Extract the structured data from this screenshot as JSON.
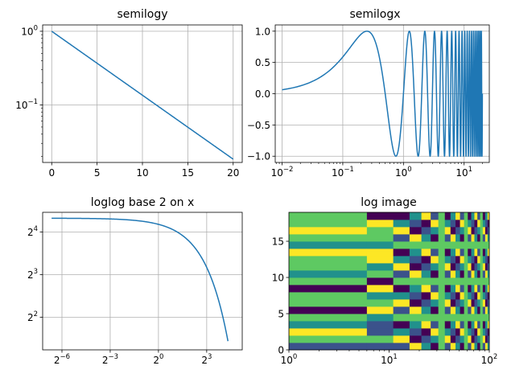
{
  "chart_data": [
    {
      "type": "line",
      "title": "semilogy",
      "xlabel": "",
      "ylabel": "",
      "yscale": "log",
      "xlim": [
        -1,
        21
      ],
      "ylim": [
        0.0165,
        1.22
      ],
      "grid": true,
      "x_ticks": [
        0,
        5,
        10,
        15,
        20
      ],
      "x_tick_labels": [
        "0",
        "5",
        "10",
        "15",
        "20"
      ],
      "y_ticks": [
        0.1,
        1
      ],
      "y_tick_labels": [
        {
          "base": "10",
          "exp": "−1"
        },
        {
          "base": "10",
          "exp": "0"
        }
      ],
      "series": [
        {
          "x": [
            0,
            20
          ],
          "y": [
            1.0,
            0.0183
          ],
          "color": "#1f77b4"
        }
      ]
    },
    {
      "type": "line",
      "title": "semilogx",
      "xlabel": "",
      "ylabel": "",
      "xscale": "log",
      "xlim": [
        0.0077,
        26
      ],
      "ylim": [
        -1.1,
        1.1
      ],
      "grid": true,
      "x_ticks": [
        0.01,
        0.1,
        1,
        10
      ],
      "x_tick_labels": [
        {
          "base": "10",
          "exp": "−2"
        },
        {
          "base": "10",
          "exp": "−1"
        },
        {
          "base": "10",
          "exp": "0"
        },
        {
          "base": "10",
          "exp": "1"
        }
      ],
      "y_ticks": [
        -1.0,
        -0.5,
        0.0,
        0.5,
        1.0
      ],
      "y_tick_labels": [
        "−1.0",
        "−0.5",
        "0.0",
        "0.5",
        "1.0"
      ],
      "series": [
        {
          "x_range": [
            0.01,
            20.0
          ],
          "function": "sin(2*pi*x)",
          "color": "#1f77b4"
        }
      ]
    },
    {
      "type": "line",
      "title": "loglog base 2 on x",
      "xlabel": "",
      "ylabel": "",
      "xscale": "log2",
      "yscale": "log2",
      "xlim": [
        0.0068,
        37
      ],
      "ylim": [
        2.35,
        22
      ],
      "grid": true,
      "x_ticks": [
        0.015625,
        0.125,
        1,
        8
      ],
      "x_tick_labels": [
        {
          "base": "2",
          "exp": "−6"
        },
        {
          "base": "2",
          "exp": "−3"
        },
        {
          "base": "2",
          "exp": "0"
        },
        {
          "base": "2",
          "exp": "3"
        }
      ],
      "y_ticks": [
        4,
        8,
        16
      ],
      "y_tick_labels": [
        {
          "base": "2",
          "exp": "2"
        },
        {
          "base": "2",
          "exp": "3"
        },
        {
          "base": "2",
          "exp": "4"
        }
      ],
      "series": [
        {
          "x_range": [
            0.01,
            20.0
          ],
          "function": "20*exp(-x/10)",
          "color": "#1f77b4"
        }
      ]
    },
    {
      "type": "heatmap",
      "title": "log image",
      "xlabel": "",
      "ylabel": "",
      "xscale": "log",
      "xlim": [
        1,
        100
      ],
      "ylim": [
        0,
        19
      ],
      "grid": false,
      "colormap": "viridis",
      "x_ticks": [
        1,
        10,
        100
      ],
      "x_tick_labels": [
        {
          "base": "10",
          "exp": "0"
        },
        {
          "base": "10",
          "exp": "1"
        },
        {
          "base": "10",
          "exp": "2"
        }
      ],
      "y_ticks": [
        0,
        5,
        10,
        15
      ],
      "y_tick_labels": [
        "0",
        "5",
        "10",
        "15"
      ],
      "x_edges": [
        1,
        6,
        11,
        16,
        21,
        26,
        31,
        36,
        41,
        46,
        51,
        56,
        61,
        66,
        71,
        76,
        81,
        86,
        91,
        96,
        100
      ],
      "rows": 19,
      "colors": [
        "#440154",
        "#3b528b",
        "#21918c",
        "#5ec962",
        "#fde725"
      ],
      "first_column_levels": [
        1,
        3,
        4,
        2,
        3,
        0,
        3,
        3,
        0,
        3,
        2,
        3,
        3,
        4,
        2,
        3,
        4,
        3,
        3
      ],
      "second_column_levels": [
        1,
        3,
        1,
        1,
        2,
        4,
        3,
        2,
        4,
        0,
        3,
        2,
        4,
        4,
        2,
        3,
        3,
        4,
        0
      ]
    }
  ]
}
